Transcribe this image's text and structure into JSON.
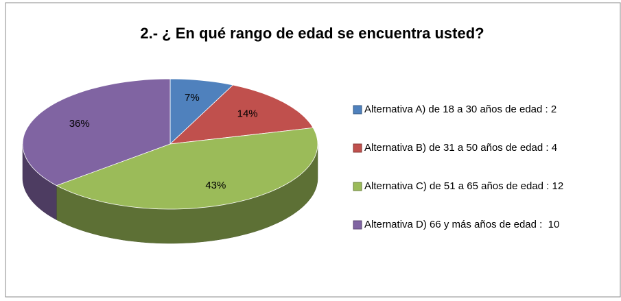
{
  "chart_data": {
    "type": "pie",
    "title": "2.- ¿ En qué rango de edad se encuentra usted?",
    "categories": [
      "Alternativa A) de 18 a 30 años de edad : 2",
      "Alternativa B) de 31 a 50 años de edad : 4",
      "Alternativa C) de 51 a 65 años de edad : 12",
      "Alternativa D) 66 y más años de edad :  10"
    ],
    "values": [
      7,
      14,
      43,
      36
    ],
    "value_labels": [
      "7%",
      "14%",
      "43%",
      "36%"
    ],
    "colors": [
      "#4f81bd",
      "#c0504d",
      "#9bbb59",
      "#8064a2"
    ],
    "legend": "right"
  }
}
